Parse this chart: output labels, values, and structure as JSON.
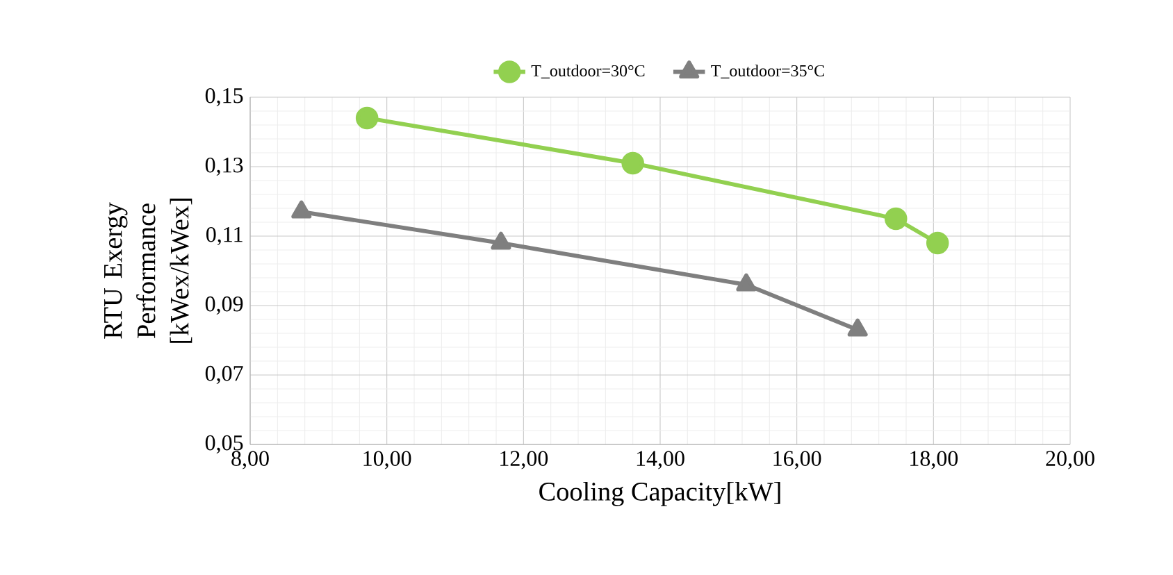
{
  "chart_data": {
    "type": "line",
    "xlabel": "Cooling Capacity[kW]",
    "ylabel": "RTU  Exergy Performance [kWex/kWex]",
    "series": [
      {
        "name": "T_outdoor=30°C",
        "color": "#92d050",
        "marker": "circle",
        "x": [
          9.71,
          13.6,
          17.45,
          18.06
        ],
        "values": [
          0.144,
          0.131,
          0.115,
          0.108
        ]
      },
      {
        "name": "T_outdoor=35°C",
        "color": "#7f7f7f",
        "marker": "triangle",
        "x": [
          8.75,
          11.67,
          15.26,
          16.89
        ],
        "values": [
          0.117,
          0.108,
          0.096,
          0.083
        ]
      }
    ],
    "xlim": [
      8,
      20
    ],
    "ylim": [
      0.05,
      0.15
    ],
    "xticks": [
      {
        "value": 8,
        "label": "8,00"
      },
      {
        "value": 10,
        "label": "10,00"
      },
      {
        "value": 12,
        "label": "12,00"
      },
      {
        "value": 14,
        "label": "14,00"
      },
      {
        "value": 16,
        "label": "16,00"
      },
      {
        "value": 18,
        "label": "18,00"
      },
      {
        "value": 20,
        "label": "20,00"
      }
    ],
    "yticks": [
      {
        "value": 0.05,
        "label": "0,05"
      },
      {
        "value": 0.07,
        "label": "0,07"
      },
      {
        "value": 0.09,
        "label": "0,09"
      },
      {
        "value": 0.11,
        "label": "0,11"
      },
      {
        "value": 0.13,
        "label": "0,13"
      },
      {
        "value": 0.15,
        "label": "0,15"
      }
    ],
    "grid": true,
    "legend": "top"
  }
}
